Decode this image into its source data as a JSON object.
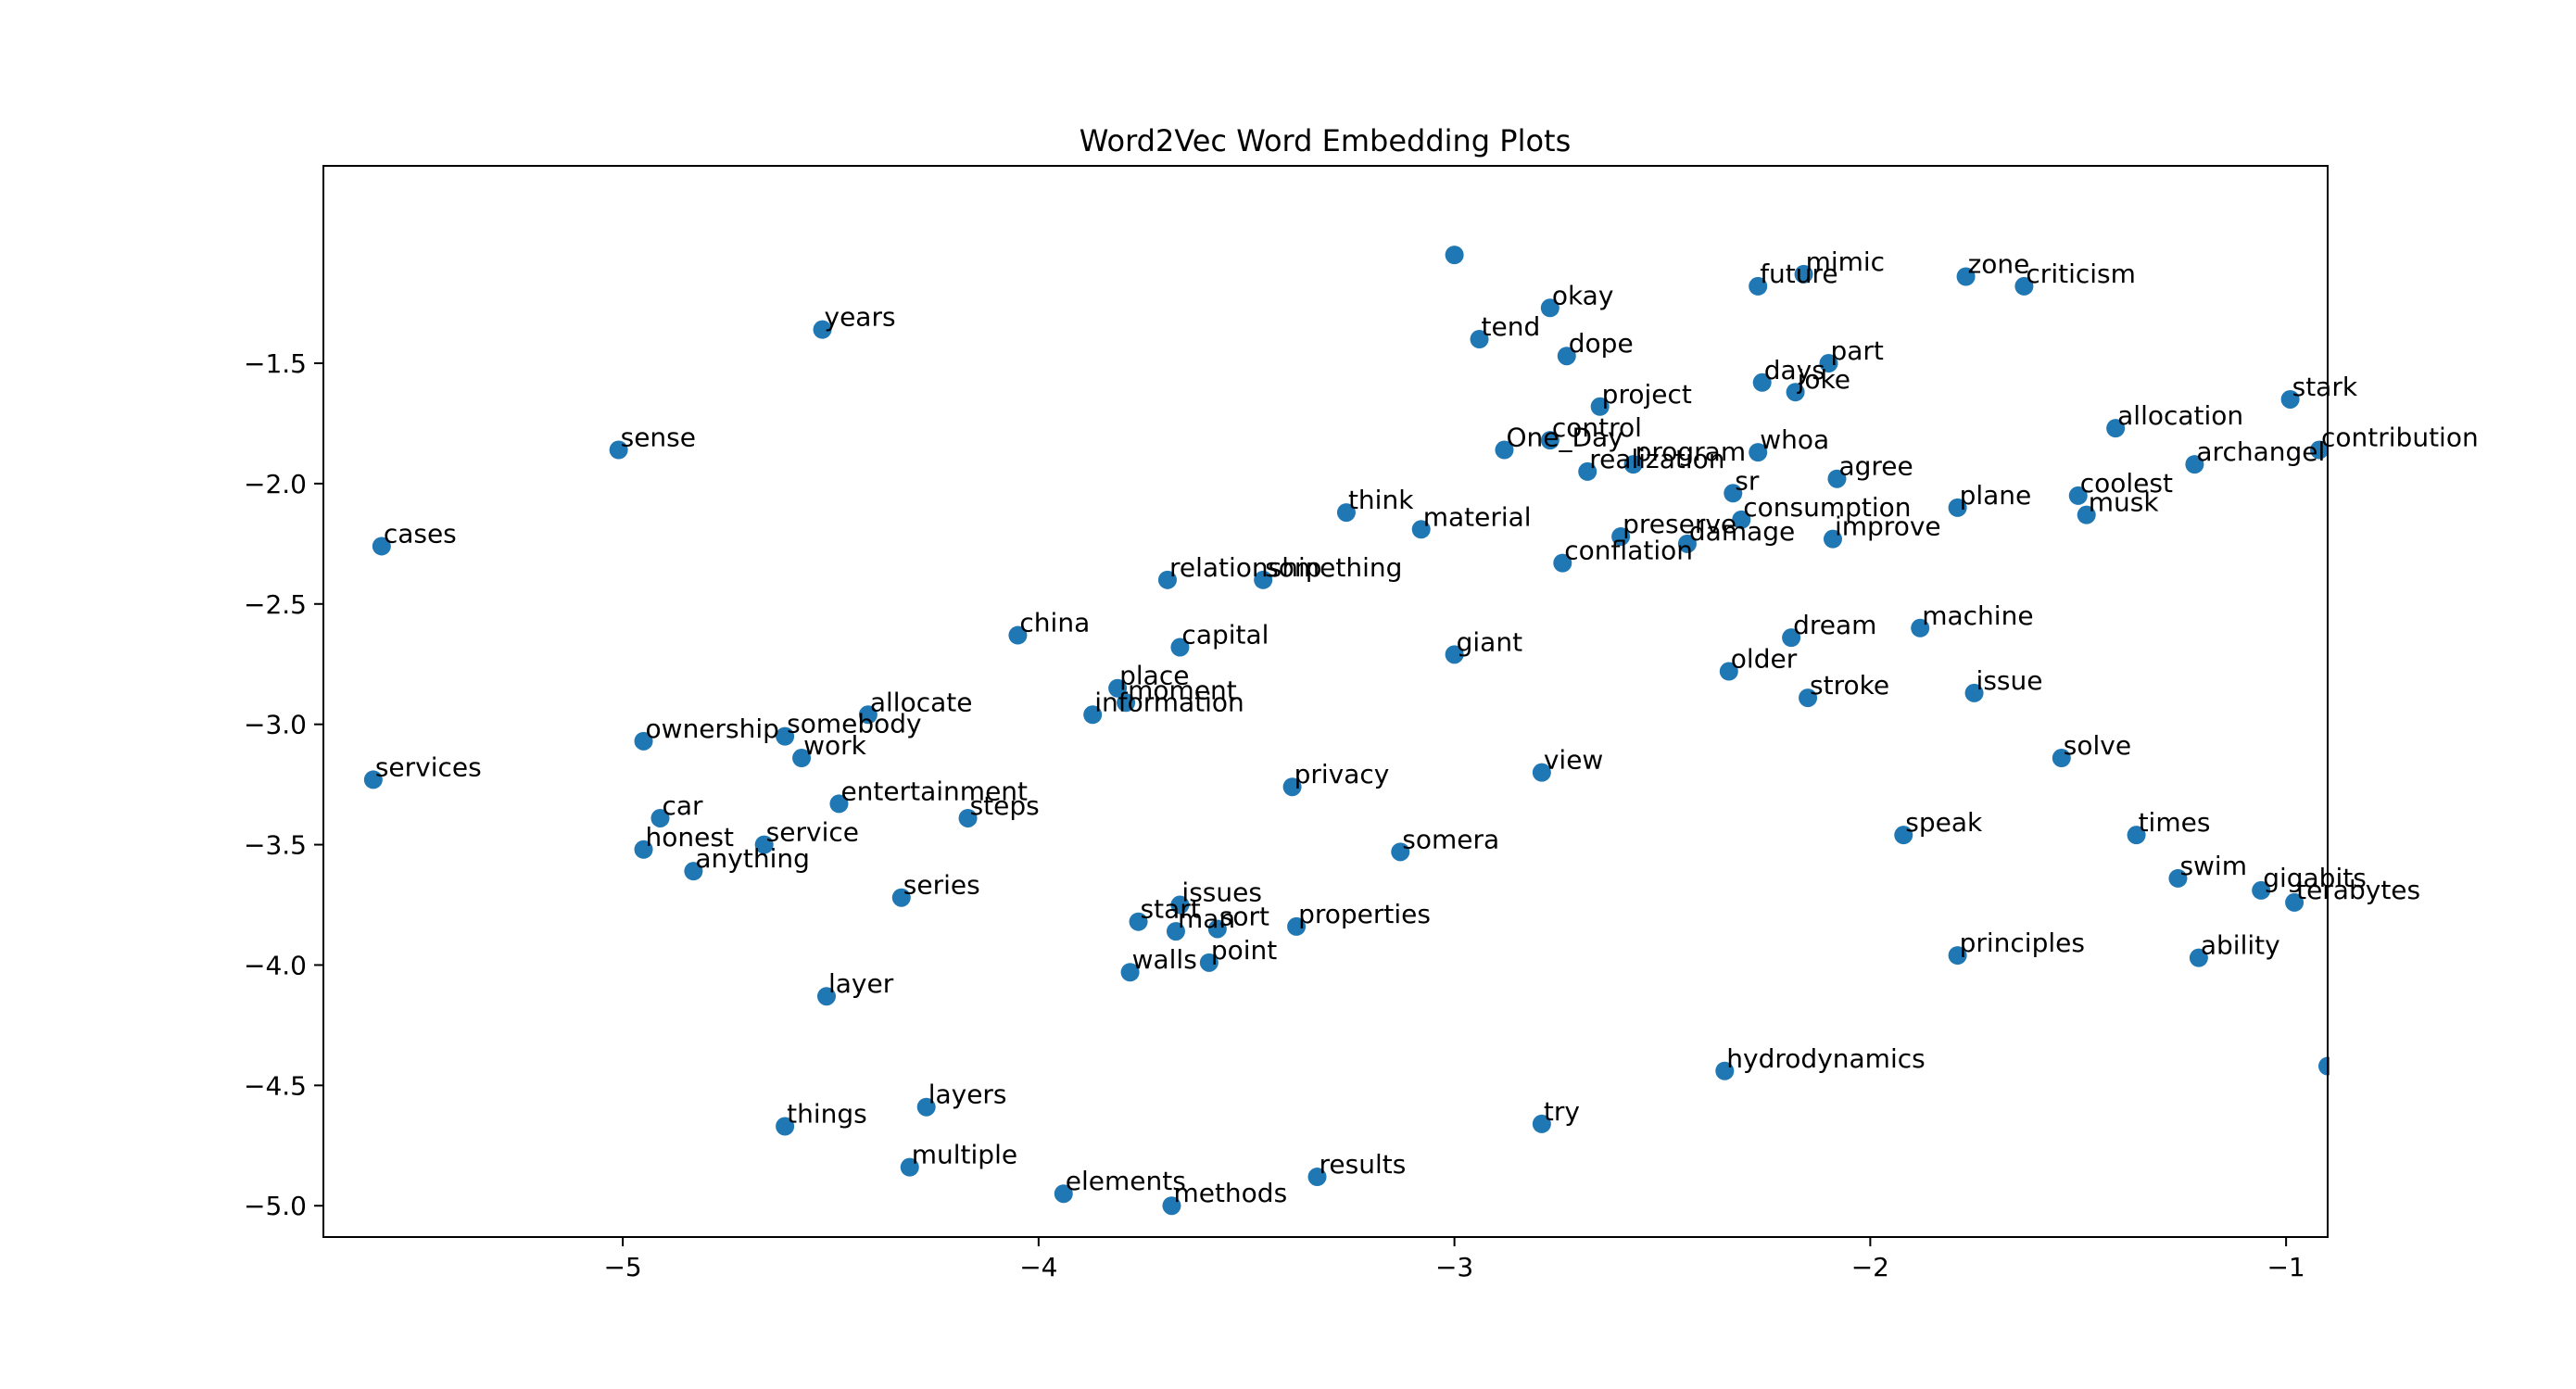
{
  "chart_data": {
    "type": "scatter",
    "title": "Word2Vec Word Embedding Plots",
    "xlabel": "",
    "ylabel": "",
    "xlim": [
      -5.72,
      -0.9
    ],
    "ylim": [
      -5.13,
      -0.68
    ],
    "xticks": [
      -5,
      -4,
      -3,
      -2,
      -1
    ],
    "yticks": [
      -1.5,
      -2.0,
      -2.5,
      -3.0,
      -3.5,
      -4.0,
      -4.5,
      -5.0
    ],
    "grid": false,
    "color": "#1f77b4",
    "points": [
      {
        "label": "mimic",
        "x": -2.16,
        "y": -1.13
      },
      {
        "label": "future",
        "x": -2.27,
        "y": -1.18
      },
      {
        "label": "zone",
        "x": -1.77,
        "y": -1.14
      },
      {
        "label": "criticism",
        "x": -1.63,
        "y": -1.18
      },
      {
        "label": "okay",
        "x": -2.77,
        "y": -1.27
      },
      {
        "label": "years",
        "x": -4.52,
        "y": -1.36
      },
      {
        "label": "tend",
        "x": -2.94,
        "y": -1.4
      },
      {
        "label": "dope",
        "x": -2.73,
        "y": -1.47
      },
      {
        "label": "part",
        "x": -2.1,
        "y": -1.5
      },
      {
        "label": "days",
        "x": -2.26,
        "y": -1.58
      },
      {
        "label": "joke",
        "x": -2.18,
        "y": -1.62
      },
      {
        "label": "stark",
        "x": -0.99,
        "y": -1.65
      },
      {
        "label": "project",
        "x": -2.65,
        "y": -1.68
      },
      {
        "label": "allocation",
        "x": -1.41,
        "y": -1.77
      },
      {
        "label": "control",
        "x": -2.77,
        "y": -1.82
      },
      {
        "label": "contribution",
        "x": -0.92,
        "y": -1.86
      },
      {
        "label": "sense",
        "x": -5.01,
        "y": -1.86
      },
      {
        "label": "One_Day",
        "x": -2.88,
        "y": -1.86
      },
      {
        "label": "whoa",
        "x": -2.27,
        "y": -1.87
      },
      {
        "label": "program",
        "x": -2.57,
        "y": -1.92
      },
      {
        "label": "archangel",
        "x": -1.22,
        "y": -1.92
      },
      {
        "label": "realization",
        "x": -2.68,
        "y": -1.95
      },
      {
        "label": "agree",
        "x": -2.08,
        "y": -1.98
      },
      {
        "label": "sr",
        "x": -2.33,
        "y": -2.04
      },
      {
        "label": "coolest",
        "x": -1.5,
        "y": -2.05
      },
      {
        "label": "plane",
        "x": -1.79,
        "y": -2.1
      },
      {
        "label": "think",
        "x": -3.26,
        "y": -2.12
      },
      {
        "label": "musk",
        "x": -1.48,
        "y": -2.13
      },
      {
        "label": "consumption",
        "x": -2.31,
        "y": -2.15
      },
      {
        "label": "material",
        "x": -3.08,
        "y": -2.19
      },
      {
        "label": "preserve",
        "x": -2.6,
        "y": -2.22
      },
      {
        "label": "improve",
        "x": -2.09,
        "y": -2.23
      },
      {
        "label": "damage",
        "x": -2.44,
        "y": -2.25
      },
      {
        "label": "cases",
        "x": -5.58,
        "y": -2.26
      },
      {
        "label": "conflation",
        "x": -2.74,
        "y": -2.33
      },
      {
        "label": "relationship",
        "x": -3.69,
        "y": -2.4
      },
      {
        "label": "something",
        "x": -3.46,
        "y": -2.4
      },
      {
        "label": "machine",
        "x": -1.88,
        "y": -2.6
      },
      {
        "label": "china",
        "x": -4.05,
        "y": -2.63
      },
      {
        "label": "dream",
        "x": -2.19,
        "y": -2.64
      },
      {
        "label": "capital",
        "x": -3.66,
        "y": -2.68
      },
      {
        "label": "giant",
        "x": -3.0,
        "y": -2.71
      },
      {
        "label": "older",
        "x": -2.34,
        "y": -2.78
      },
      {
        "label": "place",
        "x": -3.81,
        "y": -2.85
      },
      {
        "label": "issue",
        "x": -1.75,
        "y": -2.87
      },
      {
        "label": "stroke",
        "x": -2.15,
        "y": -2.89
      },
      {
        "label": "moment",
        "x": -3.79,
        "y": -2.91
      },
      {
        "label": "information",
        "x": -3.87,
        "y": -2.96
      },
      {
        "label": "allocate",
        "x": -4.41,
        "y": -2.96
      },
      {
        "label": "somebody",
        "x": -4.61,
        "y": -3.05
      },
      {
        "label": "ownership",
        "x": -4.95,
        "y": -3.07
      },
      {
        "label": "work",
        "x": -4.57,
        "y": -3.14
      },
      {
        "label": "solve",
        "x": -1.54,
        "y": -3.14
      },
      {
        "label": "view",
        "x": -2.79,
        "y": -3.2
      },
      {
        "label": "services",
        "x": -5.6,
        "y": -3.23
      },
      {
        "label": "privacy",
        "x": -3.39,
        "y": -3.26
      },
      {
        "label": "entertainment",
        "x": -4.48,
        "y": -3.33
      },
      {
        "label": "car",
        "x": -4.91,
        "y": -3.39
      },
      {
        "label": "steps",
        "x": -4.17,
        "y": -3.39
      },
      {
        "label": "speak",
        "x": -1.92,
        "y": -3.46
      },
      {
        "label": "times",
        "x": -1.36,
        "y": -3.46
      },
      {
        "label": "service",
        "x": -4.66,
        "y": -3.5
      },
      {
        "label": "honest",
        "x": -4.95,
        "y": -3.52
      },
      {
        "label": "somera",
        "x": -3.13,
        "y": -3.53
      },
      {
        "label": "anything",
        "x": -4.83,
        "y": -3.61
      },
      {
        "label": "swim",
        "x": -1.26,
        "y": -3.64
      },
      {
        "label": "gigabits",
        "x": -1.06,
        "y": -3.69
      },
      {
        "label": "series",
        "x": -4.33,
        "y": -3.72
      },
      {
        "label": "terabytes",
        "x": -0.98,
        "y": -3.74
      },
      {
        "label": "issues",
        "x": -3.66,
        "y": -3.75
      },
      {
        "label": "start",
        "x": -3.76,
        "y": -3.82
      },
      {
        "label": "properties",
        "x": -3.38,
        "y": -3.84
      },
      {
        "label": "sort",
        "x": -3.57,
        "y": -3.85
      },
      {
        "label": "man",
        "x": -3.67,
        "y": -3.86
      },
      {
        "label": "principles",
        "x": -1.79,
        "y": -3.96
      },
      {
        "label": "ability",
        "x": -1.21,
        "y": -3.97
      },
      {
        "label": "point",
        "x": -3.59,
        "y": -3.99
      },
      {
        "label": "walls",
        "x": -3.78,
        "y": -4.03
      },
      {
        "label": "layer",
        "x": -4.51,
        "y": -4.13
      },
      {
        "label": "hydrodynamics",
        "x": -2.35,
        "y": -4.44
      },
      {
        "label": "layers",
        "x": -4.27,
        "y": -4.59
      },
      {
        "label": "try",
        "x": -2.79,
        "y": -4.66
      },
      {
        "label": "things",
        "x": -4.61,
        "y": -4.67
      },
      {
        "label": "multiple",
        "x": -4.31,
        "y": -4.84
      },
      {
        "label": "results",
        "x": -3.33,
        "y": -4.88
      },
      {
        "label": "elements",
        "x": -3.94,
        "y": -4.95
      },
      {
        "label": "methods",
        "x": -3.68,
        "y": -5.0
      },
      {
        "label": "",
        "x": -3.0,
        "y": -1.05
      },
      {
        "label": "",
        "x": -0.9,
        "y": -4.42
      }
    ]
  }
}
